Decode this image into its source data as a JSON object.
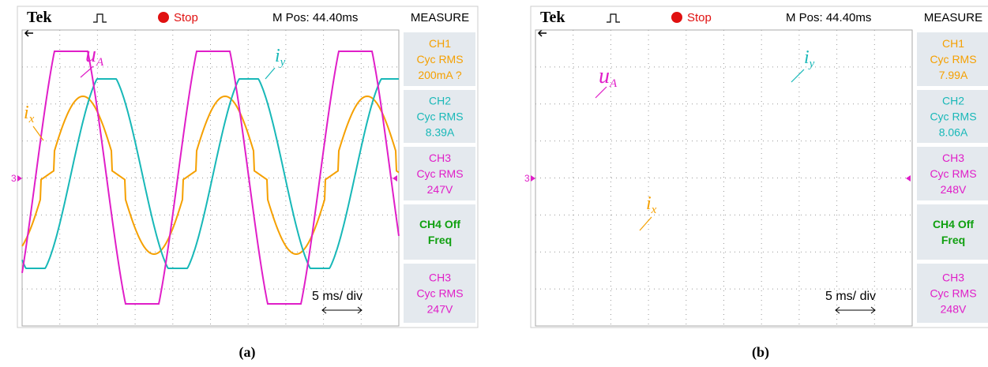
{
  "panels": [
    {
      "header": {
        "brand": "Tek",
        "status": "Stop",
        "position": "M Pos: 44.40ms",
        "menu": "MEASURE"
      },
      "marker": "3",
      "measurements": [
        {
          "lines": [
            "CH1",
            "Cyc RMS",
            "200mA ?"
          ]
        },
        {
          "lines": [
            "CH2",
            "Cyc RMS",
            "8.39A"
          ]
        },
        {
          "lines": [
            "CH3",
            "Cyc RMS",
            "247V"
          ]
        },
        {
          "lines": [
            "CH4 Off",
            "Freq"
          ]
        },
        {
          "lines": [
            "CH3",
            "Cyc RMS",
            "247V"
          ]
        }
      ],
      "labels": {
        "voltage": {
          "main": "u",
          "sub": "A"
        },
        "current_x": {
          "main": "i",
          "sub": "x"
        },
        "current_y": {
          "main": "i",
          "sub": "y"
        }
      },
      "timebase": "5 ms/ div",
      "caption": "(a)"
    },
    {
      "header": {
        "brand": "Tek",
        "status": "Stop",
        "position": "M Pos: 44.40ms",
        "menu": "MEASURE"
      },
      "marker": "3",
      "measurements": [
        {
          "lines": [
            "CH1",
            "Cyc RMS",
            "7.99A"
          ]
        },
        {
          "lines": [
            "CH2",
            "Cyc RMS",
            "8.06A"
          ]
        },
        {
          "lines": [
            "CH3",
            "Cyc RMS",
            "248V"
          ]
        },
        {
          "lines": [
            "CH4 Off",
            "Freq"
          ]
        },
        {
          "lines": [
            "CH3",
            "Cyc RMS",
            "248V"
          ]
        }
      ],
      "labels": {
        "voltage": {
          "main": "u",
          "sub": "A"
        },
        "current_x": {
          "main": "i",
          "sub": "x"
        },
        "current_y": {
          "main": "i",
          "sub": "y"
        }
      },
      "timebase": "5 ms/ div",
      "caption": "(b)"
    }
  ]
}
